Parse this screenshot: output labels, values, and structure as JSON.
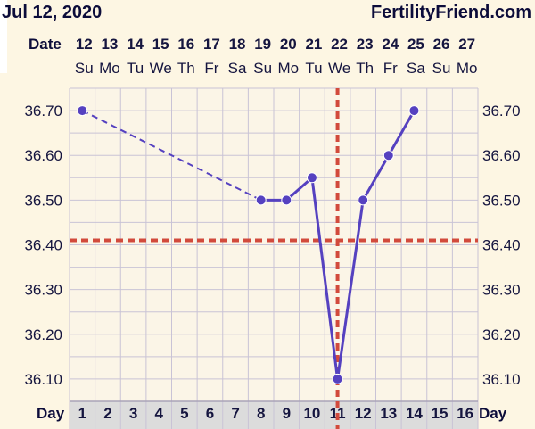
{
  "header": {
    "date": "Jul 12, 2020",
    "site": "FertilityFriend.com"
  },
  "labels": {
    "date_row": "Date",
    "day_row": "Day"
  },
  "colors": {
    "background": "#fdf6e3",
    "grid": "#c9c3d6",
    "line": "#5541c0",
    "reference": "#d24a3c"
  },
  "chart_data": {
    "type": "line",
    "dates": [
      "12",
      "13",
      "14",
      "15",
      "16",
      "17",
      "18",
      "19",
      "20",
      "21",
      "22",
      "23",
      "24",
      "25",
      "26",
      "27"
    ],
    "weekdays": [
      "Su",
      "Mo",
      "Tu",
      "We",
      "Th",
      "Fr",
      "Sa",
      "Su",
      "Mo",
      "Tu",
      "We",
      "Th",
      "Fr",
      "Sa",
      "Su",
      "Mo"
    ],
    "cycle_days": [
      "1",
      "2",
      "3",
      "4",
      "5",
      "6",
      "7",
      "8",
      "9",
      "10",
      "11",
      "12",
      "13",
      "14",
      "15",
      "16"
    ],
    "y_ticks": [
      "36.70",
      "36.60",
      "36.50",
      "36.40",
      "36.30",
      "36.20",
      "36.10"
    ],
    "ylim": [
      36.05,
      36.75
    ],
    "series": [
      {
        "points": [
          {
            "day": 1,
            "temp": 36.7
          },
          {
            "day": 8,
            "temp": 36.5
          },
          {
            "day": 9,
            "temp": 36.5
          },
          {
            "day": 10,
            "temp": 36.55
          },
          {
            "day": 11,
            "temp": 36.1
          },
          {
            "day": 12,
            "temp": 36.5
          },
          {
            "day": 13,
            "temp": 36.6
          },
          {
            "day": 14,
            "temp": 36.7
          }
        ],
        "dashed_segments": [
          [
            1,
            8
          ]
        ]
      }
    ],
    "coverline_temp": 36.41,
    "ovulation_day": 11,
    "grid": true
  }
}
